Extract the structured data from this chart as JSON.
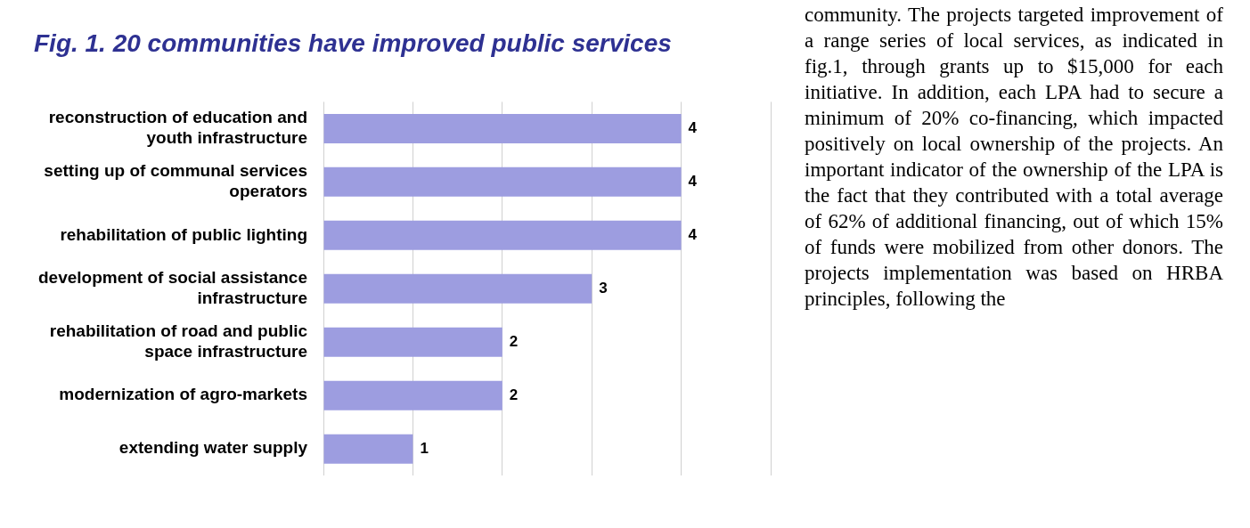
{
  "chart_data": {
    "type": "bar",
    "orientation": "horizontal",
    "title": "Fig. 1. 20 communities have improved public services",
    "categories": [
      "reconstruction of education and youth infrastructure",
      "setting up of communal services operators",
      "rehabilitation of public lighting",
      "development of social assistance infrastructure",
      "rehabilitation of road and public space infrastructure",
      "modernization of agro-markets",
      "extending water supply"
    ],
    "values": [
      4,
      4,
      4,
      3,
      2,
      2,
      1
    ],
    "color": "#9d9de0",
    "data_labels": true,
    "xlim": [
      0,
      5
    ],
    "xticks": [
      {
        "value": 0,
        "label": null
      },
      {
        "value": 1,
        "label": null
      },
      {
        "value": 2,
        "label": null
      },
      {
        "value": 3,
        "label": null
      },
      {
        "value": 4,
        "label": null
      },
      {
        "value": 5,
        "label": null
      }
    ],
    "grid": "x",
    "tick_labels": "y",
    "annotations": [
      "community. The projects targeted improvement of a range series of local services, as indicated in fig.1, through grants up to $15,000 for each initiative. In addition, each LPA had to secure a minimum of 20% co-financing, which impacted positively on local ownership of the projects. An important indicator of the ownership of the LPA is the fact that they contributed with a total average of 62% of additional financing, out of which 15% of funds were mobilized from other donors. The projects implementation was based on HRBA principles, following the"
    ]
  }
}
